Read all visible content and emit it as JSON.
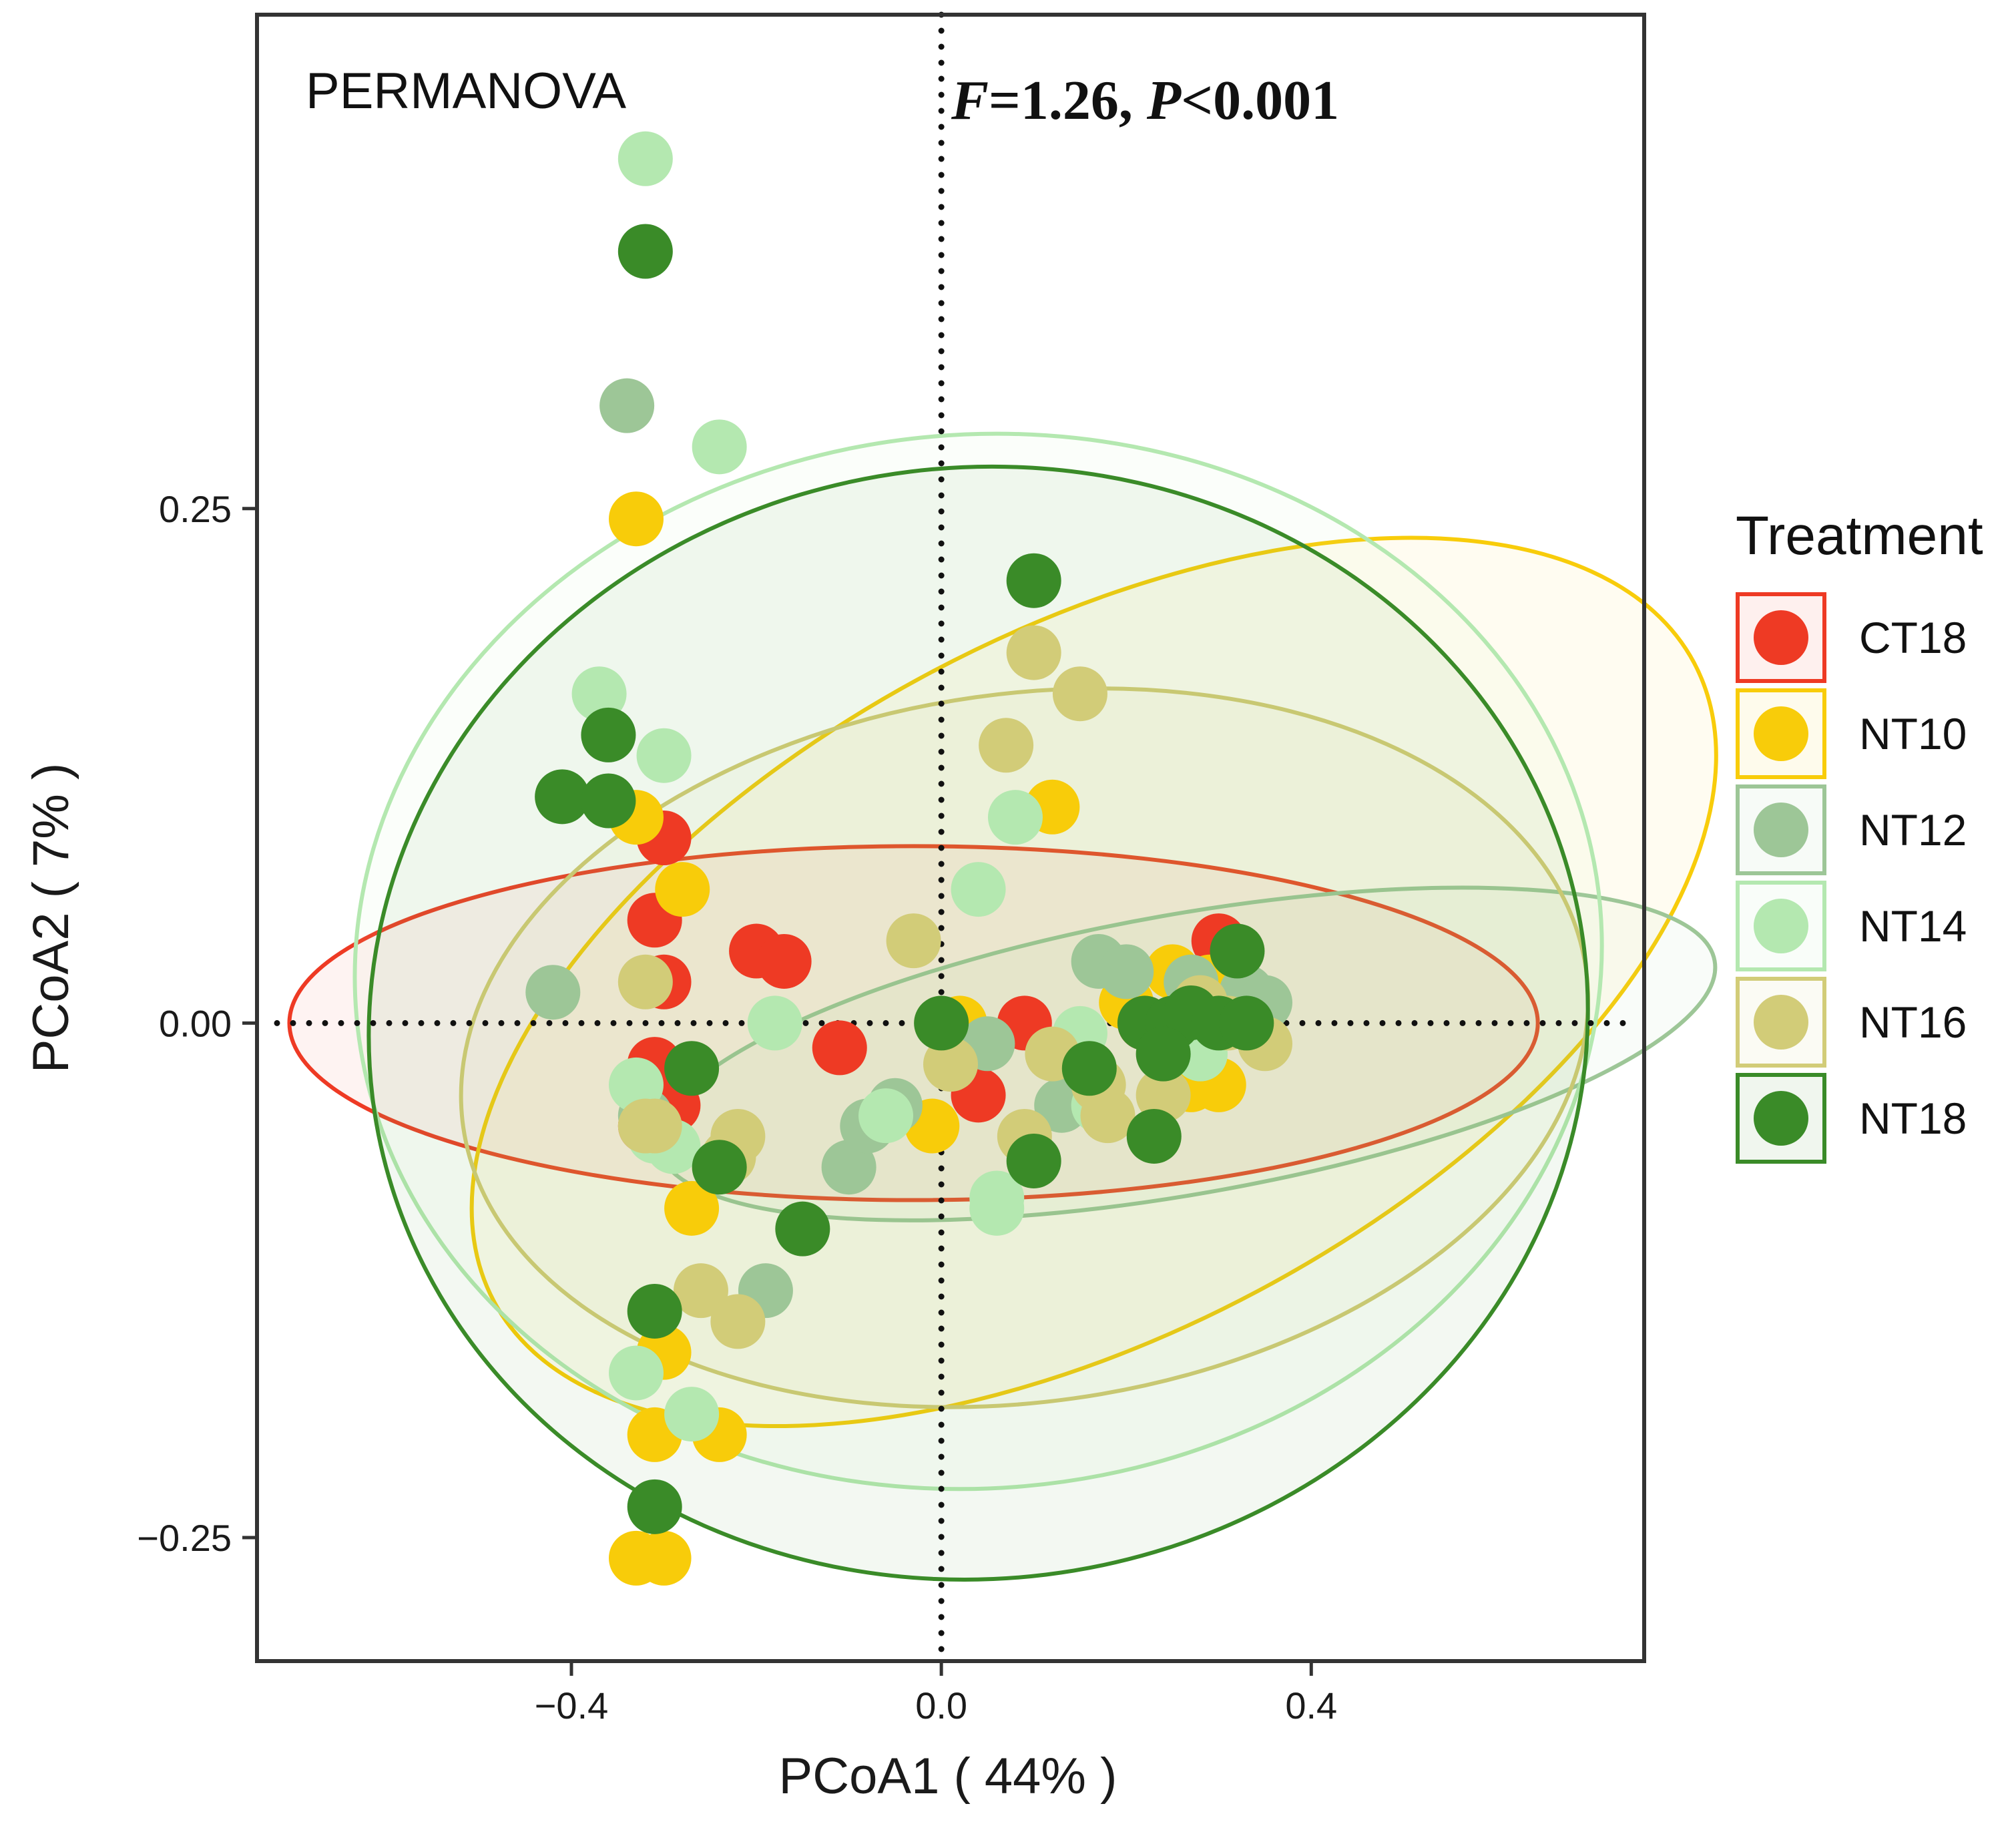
{
  "chart_data": {
    "type": "scatter",
    "xlabel": "PCoA1 ( 44% )",
    "ylabel": "PCoA2 ( 7% )",
    "xlim": [
      -0.74,
      0.76
    ],
    "ylim": [
      -0.31,
      0.49
    ],
    "xticks": [
      -0.4,
      0.0,
      0.4
    ],
    "xtick_labels": [
      "−0.4",
      "0.0",
      "0.4"
    ],
    "yticks": [
      -0.25,
      0.0,
      0.25
    ],
    "ytick_labels": [
      "−0.25",
      "0.00",
      "0.25"
    ],
    "grid": false,
    "legend_position": "right",
    "legend_title": "Treatment",
    "annotation_left": "PERMANOVA",
    "annotation_stat": {
      "F_label": "F",
      "F_value": "=1.26, ",
      "P_label": "P",
      "P_value": "<0.001"
    },
    "reference_lines": {
      "x": 0,
      "y": 0,
      "style": "dotted"
    },
    "series": [
      {
        "name": "CT18",
        "color": "#ee3a24",
        "points": [
          [
            -0.3,
            0.09
          ],
          [
            -0.31,
            0.05
          ],
          [
            -0.3,
            0.02
          ],
          [
            -0.2,
            0.035
          ],
          [
            -0.17,
            0.03
          ],
          [
            -0.11,
            -0.012
          ],
          [
            -0.31,
            -0.02
          ],
          [
            -0.29,
            -0.04
          ],
          [
            0.04,
            -0.035
          ],
          [
            0.09,
            0.0
          ],
          [
            0.3,
            0.04
          ],
          [
            0.22,
            0.0
          ],
          [
            -0.32,
            -0.05
          ]
        ],
        "ellipse": {
          "cx": -0.03,
          "cy": 0.0,
          "rx": 0.675,
          "ry": 0.086,
          "angle_deg": 0
        }
      },
      {
        "name": "NT10",
        "color": "#f8cc0a",
        "points": [
          [
            -0.33,
            0.245
          ],
          [
            -0.33,
            0.1
          ],
          [
            -0.28,
            0.065
          ],
          [
            0.12,
            0.105
          ],
          [
            0.25,
            0.025
          ],
          [
            0.29,
            0.02
          ],
          [
            0.27,
            -0.03
          ],
          [
            0.3,
            -0.03
          ],
          [
            0.2,
            0.01
          ],
          [
            0.02,
            0.0
          ],
          [
            -0.01,
            -0.05
          ],
          [
            -0.27,
            -0.09
          ],
          [
            -0.3,
            -0.16
          ],
          [
            -0.31,
            -0.2
          ],
          [
            -0.24,
            -0.2
          ],
          [
            -0.3,
            -0.26
          ],
          [
            -0.33,
            -0.26
          ]
        ],
        "ellipse": {
          "cx": 0.165,
          "cy": 0.02,
          "rx": 0.735,
          "ry": 0.17,
          "angle_deg": -28
        }
      },
      {
        "name": "NT12",
        "color": "#9dc697",
        "points": [
          [
            -0.34,
            0.3
          ],
          [
            -0.42,
            0.015
          ],
          [
            -0.19,
            -0.13
          ],
          [
            -0.1,
            -0.07
          ],
          [
            -0.08,
            -0.05
          ],
          [
            -0.05,
            -0.04
          ],
          [
            0.05,
            -0.01
          ],
          [
            0.13,
            -0.04
          ],
          [
            0.17,
            0.03
          ],
          [
            0.2,
            0.025
          ],
          [
            0.27,
            0.02
          ],
          [
            0.33,
            0.015
          ],
          [
            0.35,
            0.01
          ],
          [
            -0.32,
            -0.045
          ]
        ],
        "ellipse": {
          "cx": 0.265,
          "cy": -0.015,
          "rx": 0.58,
          "ry": 0.068,
          "angle_deg": -10
        }
      },
      {
        "name": "NT14",
        "color": "#b4e8b0",
        "points": [
          [
            -0.32,
            0.42
          ],
          [
            -0.24,
            0.28
          ],
          [
            -0.37,
            0.16
          ],
          [
            -0.3,
            0.13
          ],
          [
            0.08,
            0.1
          ],
          [
            0.04,
            0.065
          ],
          [
            -0.18,
            0.0
          ],
          [
            -0.06,
            -0.045
          ],
          [
            0.06,
            -0.085
          ],
          [
            0.15,
            -0.005
          ],
          [
            0.17,
            -0.04
          ],
          [
            0.28,
            -0.015
          ],
          [
            -0.33,
            -0.03
          ],
          [
            -0.29,
            -0.06
          ],
          [
            -0.31,
            -0.055
          ],
          [
            -0.33,
            -0.17
          ],
          [
            -0.27,
            -0.19
          ],
          [
            0.06,
            -0.09
          ]
        ],
        "ellipse": {
          "cx": 0.04,
          "cy": 0.03,
          "rx": 0.675,
          "ry": 0.256,
          "angle_deg": -5
        }
      },
      {
        "name": "NT16",
        "color": "#d2cc78",
        "points": [
          [
            0.1,
            0.18
          ],
          [
            0.15,
            0.16
          ],
          [
            0.07,
            0.135
          ],
          [
            -0.03,
            0.04
          ],
          [
            -0.32,
            0.02
          ],
          [
            0.01,
            -0.02
          ],
          [
            0.12,
            -0.015
          ],
          [
            0.17,
            -0.03
          ],
          [
            0.18,
            -0.045
          ],
          [
            0.24,
            -0.035
          ],
          [
            0.09,
            -0.055
          ],
          [
            0.35,
            -0.01
          ],
          [
            0.28,
            0.01
          ],
          [
            -0.32,
            -0.05
          ],
          [
            -0.31,
            -0.05
          ],
          [
            -0.22,
            -0.055
          ],
          [
            -0.23,
            -0.065
          ],
          [
            -0.26,
            -0.13
          ],
          [
            -0.22,
            -0.145
          ],
          [
            0.31,
            0.0
          ]
        ],
        "ellipse": {
          "cx": 0.09,
          "cy": -0.012,
          "rx": 0.613,
          "ry": 0.172,
          "angle_deg": -8
        }
      },
      {
        "name": "NT18",
        "color": "#3a8b28",
        "points": [
          [
            -0.32,
            0.375
          ],
          [
            0.1,
            0.215
          ],
          [
            -0.36,
            0.14
          ],
          [
            -0.41,
            0.11
          ],
          [
            -0.36,
            0.108
          ],
          [
            -0.27,
            -0.022
          ],
          [
            0.0,
            0.0
          ],
          [
            0.16,
            -0.022
          ],
          [
            0.22,
            0.0
          ],
          [
            0.25,
            0.0
          ],
          [
            0.27,
            0.005
          ],
          [
            0.24,
            -0.015
          ],
          [
            0.3,
            0.0
          ],
          [
            0.33,
            0.0
          ],
          [
            0.32,
            0.035
          ],
          [
            0.23,
            -0.055
          ],
          [
            0.1,
            -0.067
          ],
          [
            -0.24,
            -0.07
          ],
          [
            -0.15,
            -0.1
          ],
          [
            -0.31,
            -0.14
          ],
          [
            -0.31,
            -0.235
          ]
        ],
        "ellipse": {
          "cx": 0.04,
          "cy": 0.0,
          "rx": 0.66,
          "ry": 0.27,
          "angle_deg": -7
        }
      }
    ]
  }
}
